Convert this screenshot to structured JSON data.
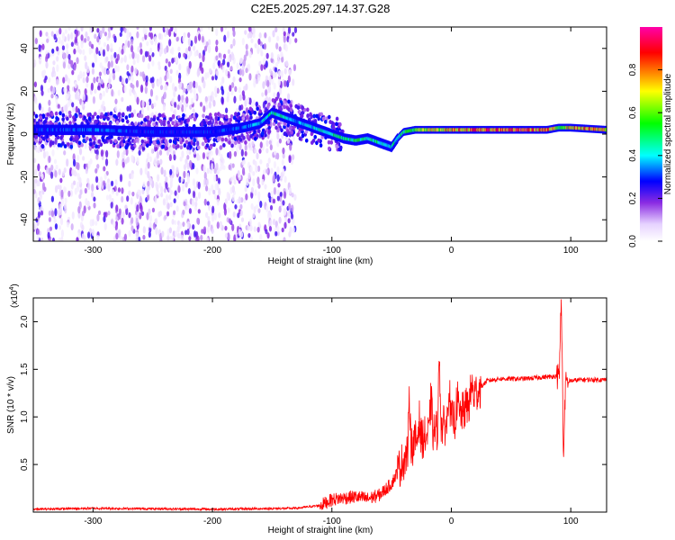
{
  "title": "C2E5.2025.297.14.37.G28",
  "chart_data": [
    {
      "type": "heatmap",
      "name": "spectrogram",
      "xlabel": "Height of straight line (km)",
      "ylabel": "Frequency (Hz)",
      "xlim": [
        -350,
        130
      ],
      "ylim": [
        -50,
        50
      ],
      "xticks": [
        -300,
        -200,
        -100,
        0,
        100
      ],
      "yticks": [
        -40,
        -20,
        0,
        20,
        40
      ],
      "colorbar": {
        "label": "Normalized spectral amplitude",
        "range": [
          0,
          1
        ],
        "ticks": [
          0.0,
          0.2,
          0.4,
          0.6,
          0.8
        ],
        "colormap": [
          "#ffffff",
          "#e6d2ff",
          "#8a2be2",
          "#0000ff",
          "#00ffff",
          "#00ff00",
          "#ffff00",
          "#ff0000",
          "#ff00aa"
        ]
      },
      "noise_region_x": [
        -350,
        -130
      ],
      "ridge": {
        "x": [
          -350,
          -300,
          -250,
          -200,
          -175,
          -160,
          -150,
          -130,
          -110,
          -100,
          -90,
          -80,
          -70,
          -60,
          -50,
          -45,
          -40,
          -30,
          -20,
          -10,
          0,
          20,
          50,
          80,
          90,
          100,
          130
        ],
        "y": [
          2,
          2,
          1,
          1,
          3,
          5,
          10,
          6,
          2,
          0,
          -2,
          -3,
          -2,
          -4,
          -6,
          -2,
          1,
          2,
          2,
          2,
          2,
          2,
          2,
          2,
          3,
          3,
          2
        ],
        "amp": [
          0.3,
          0.35,
          0.3,
          0.3,
          0.35,
          0.4,
          0.5,
          0.4,
          0.45,
          0.5,
          0.55,
          0.55,
          0.5,
          0.5,
          0.45,
          0.5,
          0.55,
          0.6,
          0.7,
          0.75,
          0.8,
          0.85,
          0.9,
          0.85,
          0.6,
          0.8,
          0.8
        ]
      }
    },
    {
      "type": "line",
      "name": "snr",
      "xlabel": "Height of straight line (km)",
      "ylabel": "SNR (10 * v/v)",
      "multiplier_label": "(x10",
      "multiplier_exp": "4",
      "multiplier_close": ")",
      "xlim": [
        -350,
        130
      ],
      "ylim": [
        0,
        2.25
      ],
      "xticks": [
        -300,
        -200,
        -100,
        0,
        100
      ],
      "yticks": [
        0.5,
        1.0,
        1.5,
        2.0
      ],
      "color": "#ff0000",
      "trend": {
        "x": [
          -350,
          -300,
          -200,
          -130,
          -110,
          -100,
          -90,
          -80,
          -70,
          -60,
          -50,
          -40,
          -30,
          -20,
          -10,
          0,
          10,
          20,
          30,
          40,
          60,
          80,
          90,
          95,
          100,
          110,
          130
        ],
        "y": [
          0.03,
          0.04,
          0.03,
          0.04,
          0.07,
          0.13,
          0.15,
          0.16,
          0.14,
          0.18,
          0.3,
          0.55,
          0.75,
          0.8,
          0.88,
          0.95,
          1.05,
          1.25,
          1.38,
          1.4,
          1.4,
          1.42,
          1.43,
          1.35,
          1.38,
          1.39,
          1.39
        ]
      },
      "spikes": [
        {
          "x": -35,
          "y": 1.2
        },
        {
          "x": -27,
          "y": 1.0
        },
        {
          "x": -17,
          "y": 1.23
        },
        {
          "x": -10,
          "y": 1.63
        },
        {
          "x": -2,
          "y": 1.38
        },
        {
          "x": 5,
          "y": 1.2
        },
        {
          "x": 17,
          "y": 1.35
        },
        {
          "x": 92,
          "y": 2.25
        },
        {
          "x": 94,
          "y": 0.62
        }
      ]
    }
  ]
}
